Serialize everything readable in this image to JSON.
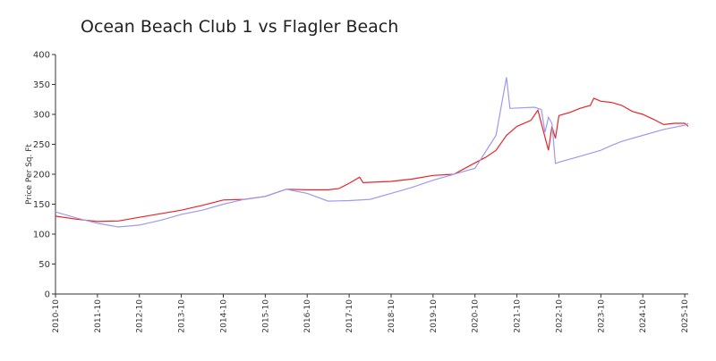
{
  "chart_data": {
    "type": "line",
    "title": "Ocean Beach Club 1 vs Flagler Beach",
    "y_label": "Price Per Sq. Ft",
    "xlim": [
      "2010-10",
      "2025-11"
    ],
    "xticks": [
      "2010-10",
      "2011-10",
      "2012-10",
      "2013-10",
      "2014-10",
      "2015-10",
      "2016-10",
      "2017-10",
      "2018-10",
      "2019-10",
      "2020-10",
      "2021-10",
      "2022-10",
      "2023-10",
      "2024-10",
      "2025-10"
    ],
    "ylim": [
      0,
      400
    ],
    "yticks": [
      0,
      50,
      100,
      150,
      200,
      250,
      300,
      350,
      400
    ],
    "series": [
      {
        "color": "#e8242a",
        "x": [
          "2010-10",
          "2011-04",
          "2011-10",
          "2012-04",
          "2012-10",
          "2013-04",
          "2013-10",
          "2014-04",
          "2014-10",
          "2015-04",
          "2015-10",
          "2016-04",
          "2016-10",
          "2017-04",
          "2017-07",
          "2017-10",
          "2018-01",
          "2018-02",
          "2018-10",
          "2019-04",
          "2019-10",
          "2020-04",
          "2020-10",
          "2021-01",
          "2021-04",
          "2021-07",
          "2021-10",
          "2022-02",
          "2022-04",
          "2022-07",
          "2022-08",
          "2022-09",
          "2022-10",
          "2023-01",
          "2023-04",
          "2023-07",
          "2023-08",
          "2023-10",
          "2024-01",
          "2024-04",
          "2024-07",
          "2024-10",
          "2025-01",
          "2025-04",
          "2025-07",
          "2025-10",
          "2025-11"
        ],
        "values": [
          130,
          125,
          121,
          122,
          128,
          134,
          140,
          148,
          157,
          158,
          163,
          175,
          174,
          174,
          176,
          185,
          195,
          186,
          188,
          192,
          198,
          200,
          219,
          228,
          240,
          265,
          280,
          290,
          307,
          240,
          280,
          260,
          298,
          303,
          310,
          315,
          327,
          322,
          320,
          315,
          305,
          300,
          292,
          283,
          285,
          285,
          280
        ]
      },
      {
        "color": "#9b9bf0",
        "x": [
          "2010-10",
          "2011-04",
          "2011-10",
          "2012-04",
          "2012-10",
          "2013-04",
          "2013-10",
          "2014-04",
          "2014-10",
          "2015-04",
          "2015-10",
          "2016-04",
          "2016-10",
          "2017-04",
          "2017-10",
          "2018-04",
          "2018-10",
          "2019-04",
          "2019-10",
          "2020-04",
          "2020-10",
          "2021-04",
          "2021-07",
          "2021-08",
          "2022-03",
          "2022-05",
          "2022-06",
          "2022-07",
          "2022-08",
          "2022-09",
          "2022-10",
          "2023-04",
          "2023-10",
          "2024-01",
          "2024-04",
          "2024-10",
          "2025-04",
          "2025-10",
          "2025-11"
        ],
        "values": [
          137,
          127,
          118,
          112,
          115,
          123,
          133,
          140,
          150,
          158,
          163,
          175,
          168,
          155,
          156,
          158,
          168,
          178,
          190,
          200,
          210,
          265,
          362,
          310,
          312,
          308,
          270,
          295,
          285,
          218,
          220,
          230,
          240,
          248,
          255,
          265,
          275,
          282,
          285
        ]
      }
    ]
  }
}
